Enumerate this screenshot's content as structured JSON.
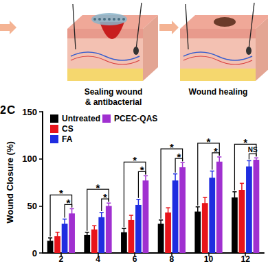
{
  "captions": [
    [
      "Sealing wound",
      "& antibacterial"
    ],
    [
      "Wound healing"
    ]
  ],
  "panel_labels": [
    "2",
    "C"
  ],
  "chart_data": {
    "type": "bar",
    "ylabel": "Wound Closure (%)",
    "categories": [
      "2",
      "4",
      "6",
      "8",
      "10",
      "12"
    ],
    "series": [
      {
        "name": "Untreated",
        "color": "#000000",
        "values": [
          13,
          19,
          22,
          31,
          44,
          59
        ],
        "errors": [
          3,
          3,
          4,
          4,
          5,
          6
        ]
      },
      {
        "name": "CS",
        "color": "#e8141b",
        "values": [
          18,
          25,
          35,
          43,
          53,
          67
        ],
        "errors": [
          4,
          4,
          5,
          5,
          6,
          7
        ]
      },
      {
        "name": "FA",
        "color": "#1f2de0",
        "values": [
          31,
          38,
          51,
          77,
          80,
          92
        ],
        "errors": [
          5,
          5,
          6,
          7,
          7,
          6
        ]
      },
      {
        "name": "PCEC-QAS",
        "color": "#a030d0",
        "values": [
          42,
          50,
          77,
          91,
          97,
          99
        ],
        "errors": [
          5,
          3,
          5,
          5,
          5,
          2
        ]
      }
    ],
    "annotations": [
      {
        "category": "2",
        "from": "FA",
        "to": "PCEC-QAS",
        "label": "*"
      },
      {
        "category": "2",
        "from": "Untreated",
        "to": "PCEC-QAS",
        "label": "*"
      },
      {
        "category": "4",
        "from": "FA",
        "to": "PCEC-QAS",
        "label": "*"
      },
      {
        "category": "4",
        "from": "Untreated",
        "to": "PCEC-QAS",
        "label": "*"
      },
      {
        "category": "6",
        "from": "FA",
        "to": "PCEC-QAS",
        "label": "*"
      },
      {
        "category": "6",
        "from": "Untreated",
        "to": "PCEC-QAS",
        "label": "*"
      },
      {
        "category": "8",
        "from": "FA",
        "to": "PCEC-QAS",
        "label": "*"
      },
      {
        "category": "8",
        "from": "Untreated",
        "to": "PCEC-QAS",
        "label": "*"
      },
      {
        "category": "10",
        "from": "FA",
        "to": "PCEC-QAS",
        "label": "*"
      },
      {
        "category": "10",
        "from": "Untreated",
        "to": "PCEC-QAS",
        "label": "*"
      },
      {
        "category": "12",
        "from": "FA",
        "to": "PCEC-QAS",
        "label": "NS"
      },
      {
        "category": "12",
        "from": "Untreated",
        "to": "PCEC-QAS",
        "label": "*"
      }
    ],
    "ylim": [
      0,
      150
    ],
    "yticks": [
      0,
      50,
      100,
      150
    ],
    "legend": "upper left",
    "grid": false
  }
}
